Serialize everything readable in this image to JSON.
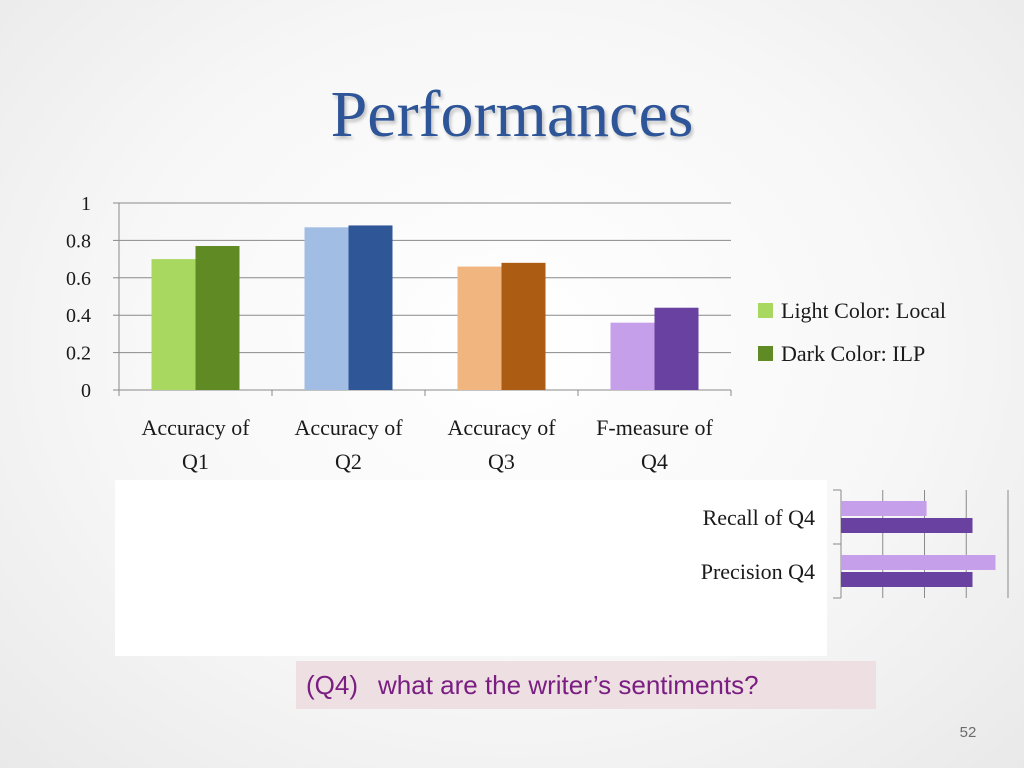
{
  "slide": {
    "title": "Performances",
    "title_color": "#2e5597",
    "question_tag": "(Q4)",
    "question_text": "what are the writer’s sentiments?",
    "question_color": "#7a1e82",
    "page_number": "52"
  },
  "legend": {
    "local": "Light Color: Local",
    "ilp": "Dark Color: ILP",
    "placement": "right",
    "local_swatch": "#a9d861",
    "ilp_swatch": "#5f8a24"
  },
  "chart_data": [
    {
      "type": "bar",
      "categories": [
        [
          "Accuracy of",
          "Q1"
        ],
        [
          "Accuracy of",
          "Q2"
        ],
        [
          "Accuracy of",
          "Q3"
        ],
        [
          "F-measure of",
          "Q4"
        ]
      ],
      "series": [
        {
          "name": "Light Color: Local",
          "values": [
            0.7,
            0.87,
            0.66,
            0.36
          ],
          "colors": [
            "#a9d861",
            "#a2bde3",
            "#f1b57f",
            "#c69fea"
          ]
        },
        {
          "name": "Dark Color: ILP",
          "values": [
            0.77,
            0.88,
            0.68,
            0.44
          ],
          "colors": [
            "#5f8a24",
            "#2f5797",
            "#ad5c14",
            "#6941a0"
          ]
        }
      ],
      "ylim": [
        0,
        1
      ],
      "yticks": [
        "0",
        "0.2",
        "0.4",
        "0.6",
        "0.8",
        "1"
      ],
      "ytick_values": [
        0,
        0.2,
        0.4,
        0.6,
        0.8,
        1
      ],
      "grid": true
    },
    {
      "type": "bar",
      "orientation": "horizontal",
      "categories": [
        "Recall of Q4",
        "Precision Q4"
      ],
      "series": [
        {
          "name": "Light Color: Local",
          "values": [
            0.41,
            0.74
          ],
          "color": "#c69fea"
        },
        {
          "name": "Dark Color: ILP",
          "values": [
            0.63,
            0.63
          ],
          "color": "#6941a0"
        }
      ],
      "xlim": [
        0,
        0.8
      ],
      "grid": true
    }
  ]
}
